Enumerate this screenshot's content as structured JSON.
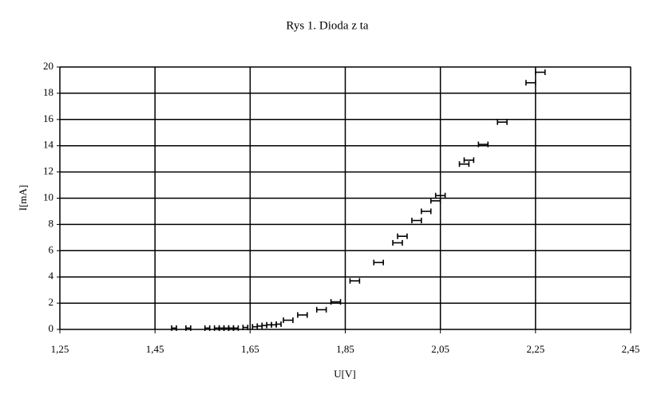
{
  "chart_data": {
    "type": "errorbar",
    "title": "Rys 1. Dioda z  ta",
    "x_label": "U[V]",
    "y_label": "I[mA]",
    "x": [
      1.49,
      1.52,
      1.56,
      1.58,
      1.59,
      1.6,
      1.61,
      1.62,
      1.64,
      1.66,
      1.67,
      1.68,
      1.69,
      1.7,
      1.71,
      1.73,
      1.76,
      1.8,
      1.83,
      1.87,
      1.92,
      1.96,
      1.97,
      2.0,
      2.02,
      2.04,
      2.05,
      2.1,
      2.11,
      2.14,
      2.18,
      2.24,
      2.26
    ],
    "y": [
      0.1,
      0.1,
      0.1,
      0.1,
      0.1,
      0.1,
      0.1,
      0.1,
      0.15,
      0.2,
      0.25,
      0.3,
      0.35,
      0.35,
      0.4,
      0.7,
      1.1,
      1.5,
      2.1,
      3.7,
      5.1,
      6.6,
      7.1,
      8.3,
      9.0,
      9.8,
      10.2,
      12.6,
      12.9,
      14.1,
      15.8,
      18.8,
      19.6
    ],
    "xerr": [
      0.005,
      0.005,
      0.005,
      0.005,
      0.005,
      0.005,
      0.005,
      0.005,
      0.005,
      0.005,
      0.005,
      0.005,
      0.005,
      0.005,
      0.005,
      0.01,
      0.01,
      0.01,
      0.01,
      0.01,
      0.01,
      0.01,
      0.01,
      0.01,
      0.01,
      0.01,
      0.01,
      0.01,
      0.01,
      0.01,
      0.01,
      0.01,
      0.01
    ],
    "color": "#000000",
    "xlim": [
      1.25,
      2.45
    ],
    "ylim": [
      0,
      20
    ],
    "xticks": [
      {
        "value": 1.25,
        "label": "1,25"
      },
      {
        "value": 1.45,
        "label": "1,45"
      },
      {
        "value": 1.65,
        "label": "1,65"
      },
      {
        "value": 1.85,
        "label": "1,85"
      },
      {
        "value": 2.05,
        "label": "2,05"
      },
      {
        "value": 2.25,
        "label": "2,25"
      },
      {
        "value": 2.45,
        "label": "2,45"
      }
    ],
    "yticks": [
      0,
      2,
      4,
      6,
      8,
      10,
      12,
      14,
      16,
      18,
      20
    ],
    "grid": true
  }
}
